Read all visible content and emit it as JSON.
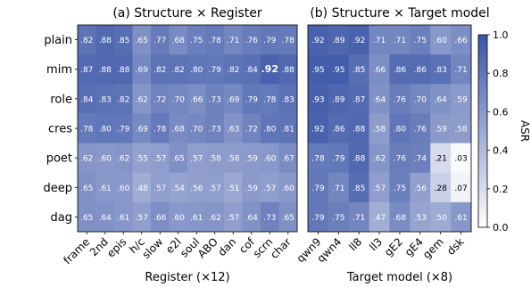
{
  "chart_data": [
    {
      "type": "heatmap",
      "title": "(a) Structure × Register",
      "xlabel": "Register (×12)",
      "ylabel": "",
      "x": [
        "frame",
        "2nd",
        "epis",
        "h/c",
        "slow",
        "e2l",
        "soul",
        "ABO",
        "dan",
        "cof",
        "scrn",
        "char"
      ],
      "y": [
        "plain",
        "mim",
        "role",
        "cres",
        "poet",
        "deep",
        "dag"
      ],
      "values": [
        [
          0.82,
          0.88,
          0.85,
          0.65,
          0.77,
          0.68,
          0.75,
          0.78,
          0.71,
          0.76,
          0.79,
          0.78
        ],
        [
          0.87,
          0.88,
          0.88,
          0.69,
          0.82,
          0.82,
          0.8,
          0.79,
          0.82,
          0.84,
          0.92,
          0.88
        ],
        [
          0.84,
          0.83,
          0.82,
          0.62,
          0.72,
          0.7,
          0.66,
          0.73,
          0.69,
          0.79,
          0.78,
          0.83
        ],
        [
          0.78,
          0.8,
          0.79,
          0.69,
          0.78,
          0.68,
          0.7,
          0.73,
          0.63,
          0.72,
          0.8,
          0.81
        ],
        [
          0.62,
          0.6,
          0.62,
          0.55,
          0.57,
          0.65,
          0.57,
          0.58,
          0.58,
          0.59,
          0.6,
          0.67
        ],
        [
          0.65,
          0.61,
          0.6,
          0.48,
          0.57,
          0.54,
          0.56,
          0.57,
          0.51,
          0.59,
          0.57,
          0.6
        ],
        [
          0.65,
          0.64,
          0.61,
          0.57,
          0.66,
          0.6,
          0.61,
          0.62,
          0.57,
          0.64,
          0.73,
          0.65
        ]
      ],
      "labels": [
        [
          ".82",
          ".88",
          ".85",
          ".65",
          ".77",
          ".68",
          ".75",
          ".78",
          ".71",
          ".76",
          ".79",
          ".78"
        ],
        [
          ".87",
          ".88",
          ".88",
          ".69",
          ".82",
          ".82",
          ".80",
          ".79",
          ".82",
          ".84",
          ".92",
          ".88"
        ],
        [
          ".84",
          ".83",
          ".82",
          ".62",
          ".72",
          ".70",
          ".66",
          ".73",
          ".69",
          ".79",
          ".78",
          ".83"
        ],
        [
          ".78",
          ".80",
          ".79",
          ".69",
          ".78",
          ".68",
          ".70",
          ".73",
          ".63",
          ".72",
          ".80",
          ".81"
        ],
        [
          ".62",
          ".60",
          ".62",
          ".55",
          ".57",
          ".65",
          ".57",
          ".58",
          ".58",
          ".59",
          ".60",
          ".67"
        ],
        [
          ".65",
          ".61",
          ".60",
          ".48",
          ".57",
          ".54",
          ".56",
          ".57",
          ".51",
          ".59",
          ".57",
          ".60"
        ],
        [
          ".65",
          ".64",
          ".61",
          ".57",
          ".66",
          ".60",
          ".61",
          ".62",
          ".57",
          ".64",
          ".73",
          ".65"
        ]
      ],
      "highlight": {
        "row": 1,
        "col": 10,
        "style": "bold"
      }
    },
    {
      "type": "heatmap",
      "title": "(b) Structure × Target model",
      "xlabel": "Target model (×8)",
      "ylabel": "",
      "x": [
        "qwn9",
        "qwn4",
        "ll8",
        "ll3",
        "gE2",
        "gE4",
        "gem",
        "dsk"
      ],
      "y": [
        "plain",
        "mim",
        "role",
        "cres",
        "poet",
        "deep",
        "dag"
      ],
      "values": [
        [
          0.92,
          0.89,
          0.92,
          0.71,
          0.71,
          0.75,
          0.6,
          0.66
        ],
        [
          0.95,
          0.95,
          0.85,
          0.66,
          0.86,
          0.86,
          0.83,
          0.71
        ],
        [
          0.93,
          0.89,
          0.87,
          0.64,
          0.76,
          0.7,
          0.64,
          0.59
        ],
        [
          0.92,
          0.86,
          0.88,
          0.58,
          0.8,
          0.76,
          0.59,
          0.58
        ],
        [
          0.78,
          0.79,
          0.88,
          0.62,
          0.76,
          0.74,
          0.21,
          0.03
        ],
        [
          0.79,
          0.71,
          0.85,
          0.57,
          0.75,
          0.56,
          0.28,
          0.07
        ],
        [
          0.79,
          0.75,
          0.71,
          0.47,
          0.68,
          0.53,
          0.5,
          0.61
        ]
      ],
      "labels": [
        [
          ".92",
          ".89",
          ".92",
          ".71",
          ".71",
          ".75",
          ".60",
          ".66"
        ],
        [
          ".95",
          ".95",
          ".85",
          ".66",
          ".86",
          ".86",
          ".83",
          ".71"
        ],
        [
          ".93",
          ".89",
          ".87",
          ".64",
          ".76",
          ".70",
          ".64",
          ".59"
        ],
        [
          ".92",
          ".86",
          ".88",
          ".58",
          ".80",
          ".76",
          ".59",
          ".58"
        ],
        [
          ".78",
          ".79",
          ".88",
          ".62",
          ".76",
          ".74",
          ".21",
          ".03"
        ],
        [
          ".79",
          ".71",
          ".85",
          ".57",
          ".75",
          ".56",
          ".28",
          ".07"
        ],
        [
          ".79",
          ".75",
          ".71",
          ".47",
          ".68",
          ".53",
          ".50",
          ".61"
        ]
      ]
    }
  ],
  "colorbar": {
    "label": "ASR",
    "range": [
      0.0,
      1.0
    ],
    "ticks": [
      0.0,
      0.2,
      0.4,
      0.6,
      0.8,
      1.0
    ],
    "tick_labels": [
      "0.0",
      "0.2",
      "0.4",
      "0.6",
      "0.8",
      "1.0"
    ],
    "color_low": "#ffffff",
    "color_high": "#3a54a6"
  },
  "colors": {
    "cell_text_dark_bg": "#ffffff",
    "cell_text_light_bg": "#000000",
    "axis": "#000000"
  }
}
